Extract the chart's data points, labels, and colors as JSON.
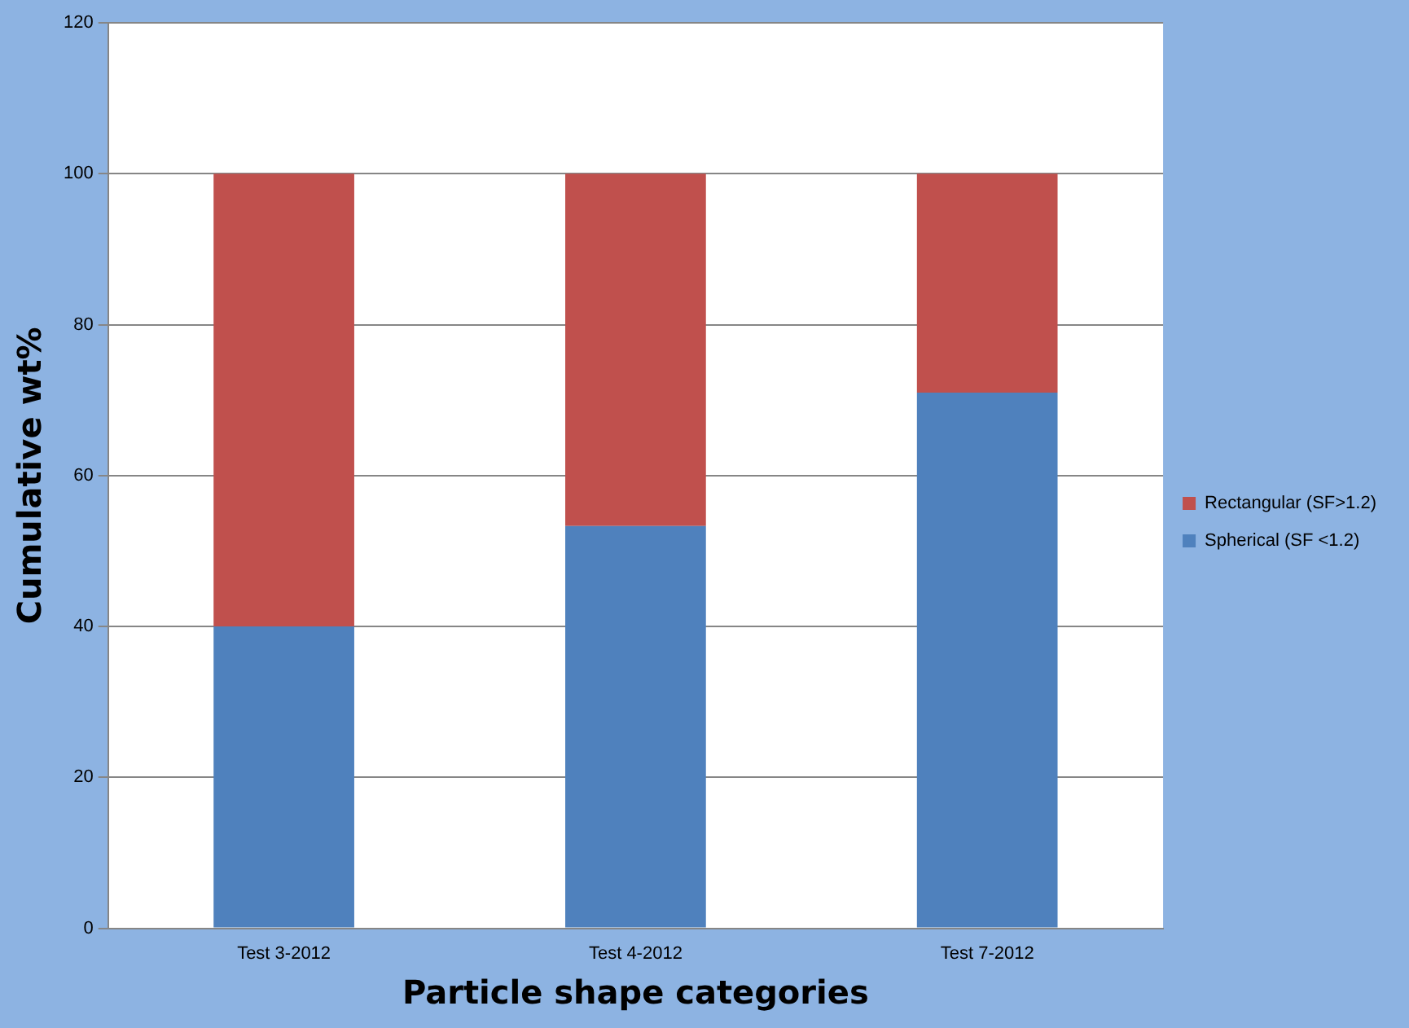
{
  "chart_data": {
    "type": "bar",
    "stacked": true,
    "xlabel": "Particle shape categories",
    "ylabel": "Cumulative wt%",
    "categories": [
      "Test 3-2012",
      "Test 4-2012",
      "Test 7-2012"
    ],
    "series": [
      {
        "name": "Spherical (SF <1.2)",
        "color": "#4f81bd",
        "values": [
          40,
          53.3,
          71
        ]
      },
      {
        "name": "Rectangular (SF>1.2)",
        "color": "#c0504d",
        "values": [
          60,
          46.7,
          29
        ]
      }
    ],
    "ylim": [
      0,
      120
    ],
    "yticks": [
      0,
      20,
      40,
      60,
      80,
      100,
      120
    ],
    "grid": "y",
    "legend": "right"
  }
}
